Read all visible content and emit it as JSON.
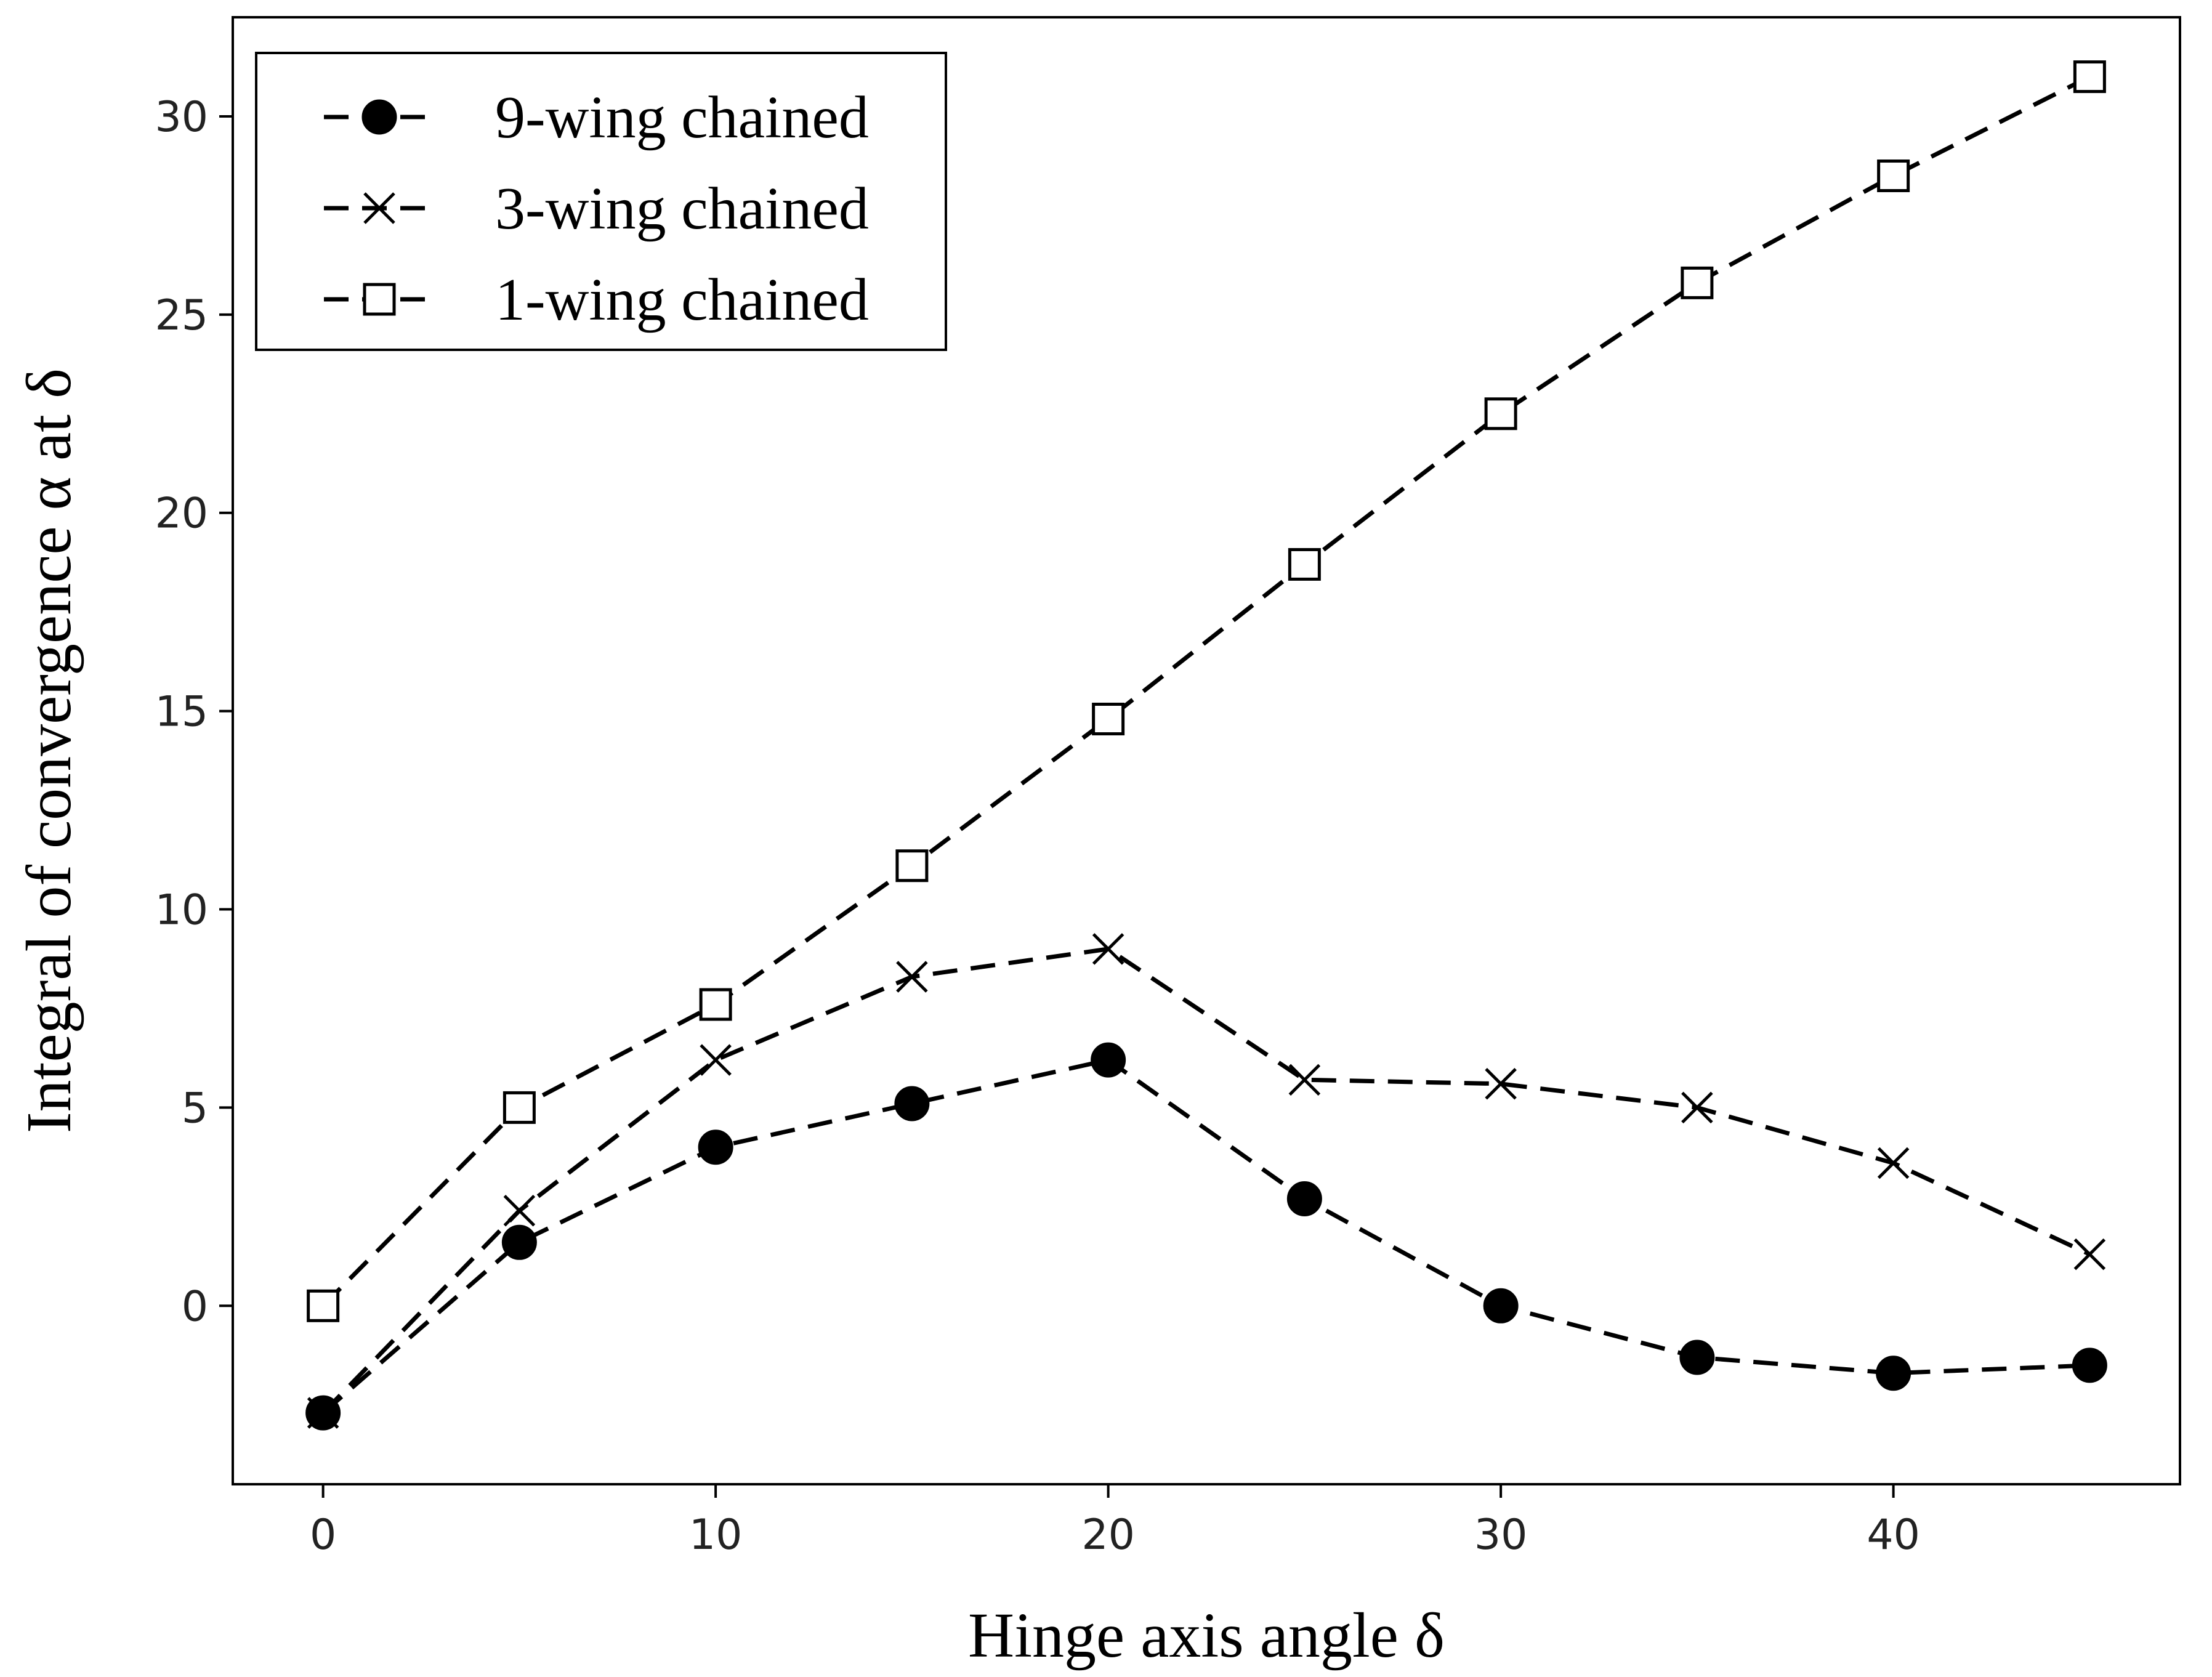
{
  "chart_data": {
    "type": "line",
    "title": "",
    "xlabel": "Hinge axis angle δ",
    "ylabel": "Integral of convergence α at δ",
    "x": [
      0,
      5,
      10,
      15,
      20,
      25,
      30,
      35,
      40,
      45
    ],
    "xlim": [
      -2.3,
      47.3
    ],
    "ylim": [
      -4.5,
      32.5
    ],
    "xticks": [
      0,
      10,
      20,
      30,
      40
    ],
    "yticks": [
      0,
      5,
      10,
      15,
      20,
      25,
      30
    ],
    "grid": false,
    "legend_position": "top-left",
    "series": [
      {
        "name": "9-wing chained",
        "marker": "filled-circle",
        "line_style": "dashed",
        "color": "#000000",
        "values": [
          -2.7,
          1.6,
          4.0,
          5.1,
          6.2,
          2.7,
          0.0,
          -1.3,
          -1.7,
          -1.5
        ]
      },
      {
        "name": "3-wing chained",
        "marker": "x",
        "line_style": "dashed",
        "color": "#000000",
        "values": [
          -2.7,
          2.4,
          6.2,
          8.3,
          9.0,
          5.7,
          5.6,
          5.0,
          3.6,
          1.3
        ]
      },
      {
        "name": "1-wing chained",
        "marker": "open-square",
        "line_style": "dashed",
        "color": "#000000",
        "values": [
          0.0,
          5.0,
          7.6,
          11.1,
          14.8,
          18.7,
          22.5,
          25.8,
          28.5,
          31.0
        ]
      }
    ]
  }
}
